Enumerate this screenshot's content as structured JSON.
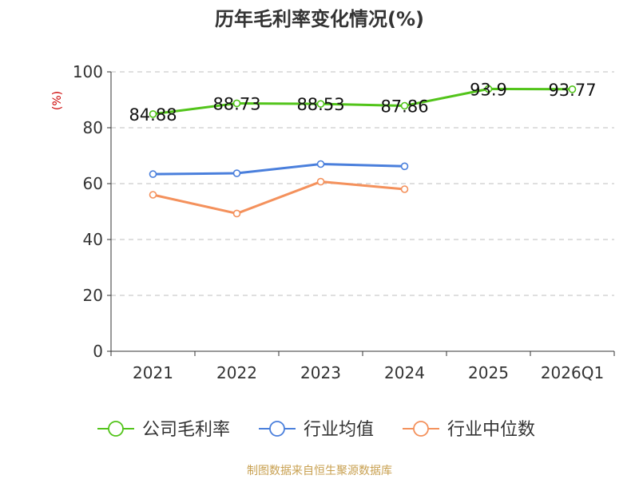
{
  "chart_data": {
    "type": "line",
    "title": "历年毛利率变化情况(%)",
    "ylabel": "(%)",
    "xlabel": "",
    "categories": [
      "2021",
      "2022",
      "2023",
      "2024",
      "2025",
      "2026Q1"
    ],
    "ylim": [
      0,
      100
    ],
    "yticks": [
      0,
      20,
      40,
      60,
      80,
      100
    ],
    "grid": true,
    "legend_position": "bottom",
    "series": [
      {
        "name": "公司毛利率",
        "color": "#52c41a",
        "values": [
          84.88,
          88.73,
          88.53,
          87.86,
          93.9,
          93.77
        ],
        "labels": [
          "84.88",
          "88.73",
          "88.53",
          "87.86",
          "93.9",
          "93.77"
        ]
      },
      {
        "name": "行业均值",
        "color": "#4a7fdc",
        "values": [
          63.4,
          63.7,
          67.0,
          66.2,
          null,
          null
        ]
      },
      {
        "name": "行业中位数",
        "color": "#f4915c",
        "values": [
          56.0,
          49.3,
          60.7,
          58.0,
          null,
          null
        ]
      }
    ],
    "source": "制图数据来自恒生聚源数据库"
  },
  "colors": {
    "title": "#333333",
    "axis": "#333333",
    "grid": "#cccccc",
    "ylabel": "#cc0000",
    "source": "#c8a050"
  }
}
